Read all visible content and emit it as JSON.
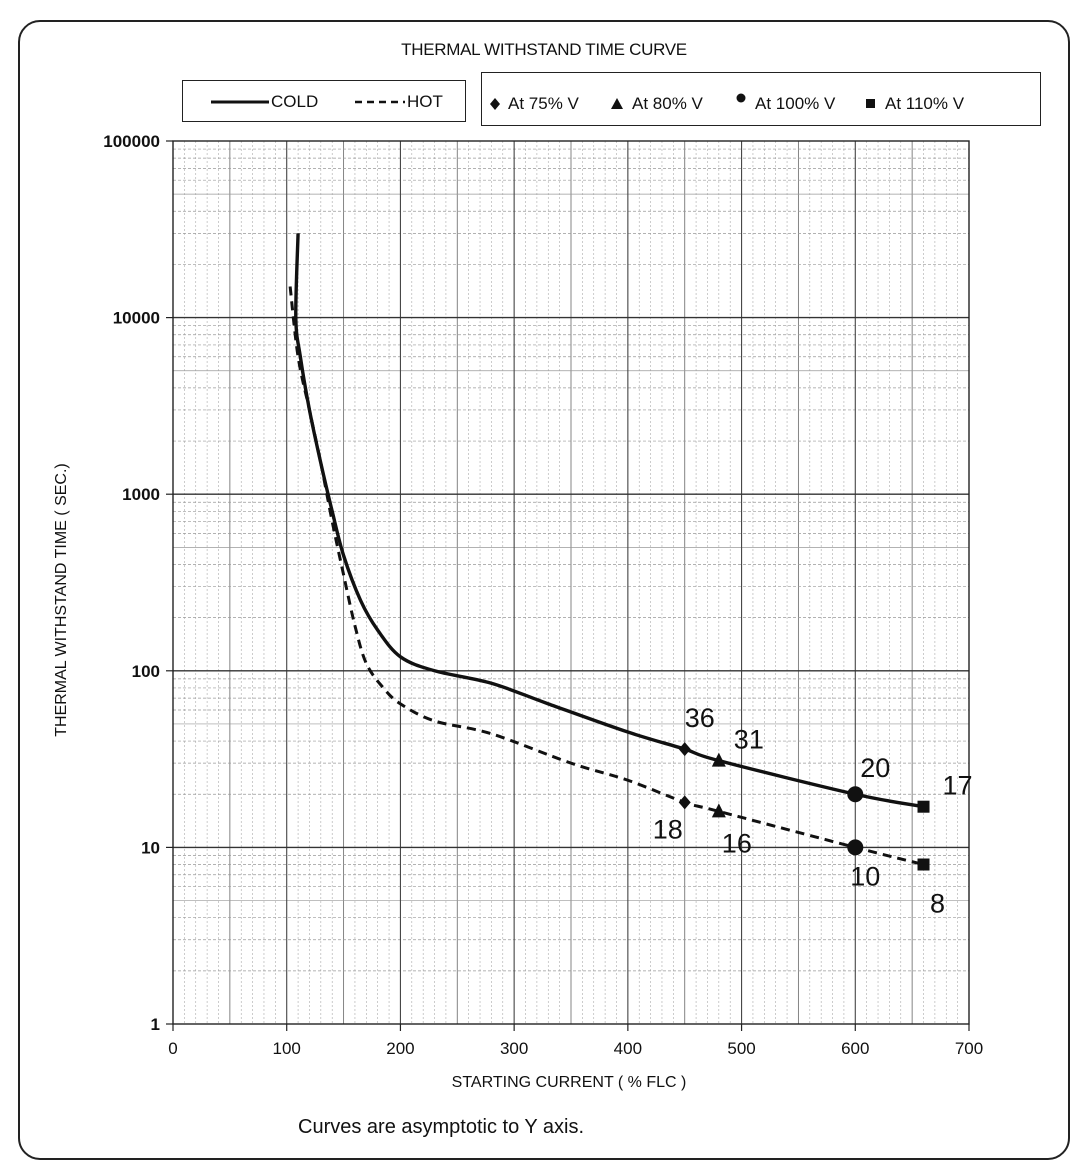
{
  "chart_data": {
    "type": "line",
    "title": "THERMAL WITHSTAND TIME CURVE",
    "xlabel": "STARTING CURRENT ( % FLC )",
    "ylabel": "THERMAL WITHSTAND TIME ( SEC.)",
    "footnote": "Curves are asymptotic to Y axis.",
    "xlim": [
      0,
      700
    ],
    "ylim": [
      1,
      100000
    ],
    "yscale": "log",
    "grid": true,
    "x_ticks": [
      "0",
      "100",
      "200",
      "300",
      "400",
      "500",
      "600",
      "700"
    ],
    "y_ticks": [
      "1",
      "10",
      "100",
      "1000",
      "10000",
      "100000"
    ],
    "legend_lines": [
      {
        "label": "COLD",
        "style": "solid"
      },
      {
        "label": "HOT",
        "style": "dashed"
      }
    ],
    "legend_markers": [
      {
        "label": "At 75% V",
        "marker": "diamond"
      },
      {
        "label": "At 80% V",
        "marker": "triangle"
      },
      {
        "label": "At 100% V",
        "marker": "circle"
      },
      {
        "label": "At 110% V",
        "marker": "square"
      }
    ],
    "series": [
      {
        "name": "COLD",
        "style": "solid",
        "x": [
          110,
          108,
          112,
          120,
          130,
          140,
          150,
          165,
          180,
          200,
          230,
          280,
          330,
          400,
          450,
          480,
          600,
          660
        ],
        "y": [
          30000,
          10000,
          6000,
          3000,
          1500,
          800,
          450,
          250,
          170,
          120,
          100,
          85,
          65,
          45,
          36,
          31,
          20,
          17
        ]
      },
      {
        "name": "HOT",
        "style": "dashed",
        "x": [
          103,
          110,
          120,
          130,
          140,
          150,
          160,
          170,
          185,
          200,
          230,
          280,
          350,
          400,
          450,
          480,
          600,
          660
        ],
        "y": [
          15000,
          6000,
          3000,
          1500,
          700,
          350,
          180,
          110,
          80,
          65,
          52,
          44,
          30,
          24,
          18,
          16,
          10,
          8
        ]
      }
    ],
    "points": [
      {
        "series": "COLD",
        "marker": "diamond",
        "x": 450,
        "y": 36,
        "label": "36"
      },
      {
        "series": "COLD",
        "marker": "triangle",
        "x": 480,
        "y": 31,
        "label": "31"
      },
      {
        "series": "COLD",
        "marker": "circle",
        "x": 600,
        "y": 20,
        "label": "20"
      },
      {
        "series": "COLD",
        "marker": "square",
        "x": 660,
        "y": 17,
        "label": "17"
      },
      {
        "series": "HOT",
        "marker": "diamond",
        "x": 450,
        "y": 18,
        "label": "18"
      },
      {
        "series": "HOT",
        "marker": "triangle",
        "x": 480,
        "y": 16,
        "label": "16"
      },
      {
        "series": "HOT",
        "marker": "circle",
        "x": 600,
        "y": 10,
        "label": "10"
      },
      {
        "series": "HOT",
        "marker": "square",
        "x": 660,
        "y": 8,
        "label": "8"
      }
    ]
  }
}
